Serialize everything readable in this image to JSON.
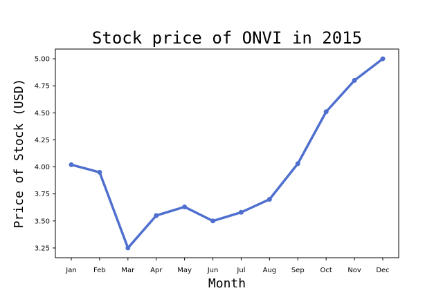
{
  "chart_data": {
    "type": "line",
    "title": "Stock price of ONVI in 2015",
    "xlabel": "Month",
    "ylabel": "Price of Stock (USD)",
    "categories": [
      "Jan",
      "Feb",
      "Mar",
      "Apr",
      "May",
      "Jun",
      "Jul",
      "Aug",
      "Sep",
      "Oct",
      "Nov",
      "Dec"
    ],
    "series": [
      {
        "values": [
          4.02,
          3.95,
          3.25,
          3.55,
          3.63,
          3.5,
          3.58,
          3.7,
          4.03,
          4.51,
          4.8,
          5.0
        ],
        "color": "#4f6fcf"
      }
    ],
    "yticks": [
      "3.25",
      "3.50",
      "3.75",
      "4.00",
      "4.25",
      "4.50",
      "4.75",
      "5.00"
    ],
    "ylim": [
      3.16,
      5.09
    ],
    "grid": false,
    "legend": "none"
  }
}
